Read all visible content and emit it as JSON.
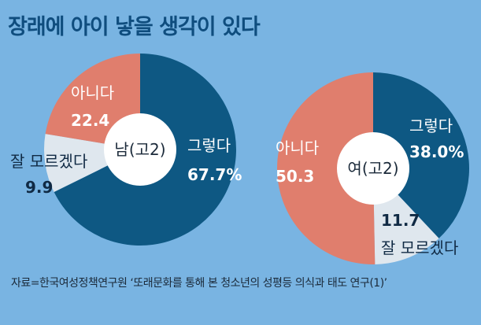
{
  "title": "장래에 아이 낳을 생각이 있다",
  "source": "자료=한국여성정책연구원 ‘또래문화를 통해 본 청소년의 성평등 의식과 태도 연구(1)’",
  "colors": {
    "yes": "#0e5883",
    "no": "#e07e6d",
    "unsure": "#dfe7ee",
    "center": "#ffffff",
    "background": "#79b4e2",
    "title": "#0f4d7e"
  },
  "chart_data": [
    {
      "type": "pie",
      "center_label": "남(고2)",
      "slices": [
        {
          "label": "그렇다",
          "value": 67.7,
          "value_text": "67.7%",
          "color": "#0e5883"
        },
        {
          "label": "잘 모르겠다",
          "value": 9.9,
          "value_text": "9.9",
          "color": "#dfe7ee"
        },
        {
          "label": "아니다",
          "value": 22.4,
          "value_text": "22.4",
          "color": "#e07e6d"
        }
      ]
    },
    {
      "type": "pie",
      "center_label": "여(고2)",
      "slices": [
        {
          "label": "그렇다",
          "value": 38.0,
          "value_text": "38.0%",
          "color": "#0e5883"
        },
        {
          "label": "잘 모르겠다",
          "value": 11.7,
          "value_text": "11.7",
          "color": "#dfe7ee"
        },
        {
          "label": "아니다",
          "value": 50.3,
          "value_text": "50.3",
          "color": "#e07e6d"
        }
      ]
    }
  ]
}
